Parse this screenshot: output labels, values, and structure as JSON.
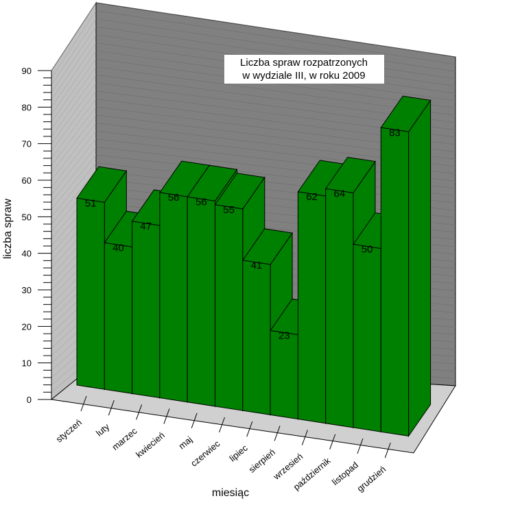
{
  "chart_data": {
    "type": "bar",
    "title_lines": [
      "Liczba spraw rozpatrzonych",
      "w  wydziale III, w roku 2009"
    ],
    "xlabel": "miesiąc",
    "ylabel": "liczba spraw",
    "ylim": [
      0,
      90
    ],
    "y_ticks": [
      0,
      10,
      20,
      30,
      40,
      50,
      60,
      70,
      80,
      90
    ],
    "categories": [
      "styczeń",
      "luty",
      "marzec",
      "kwiecień",
      "maj",
      "czerwiec",
      "lipiec",
      "sierpień",
      "wrzesień",
      "październik",
      "listopad",
      "grudzień"
    ],
    "values": [
      51,
      40,
      47,
      56,
      56,
      55,
      41,
      23,
      62,
      64,
      50,
      83
    ],
    "bar_color": "#008000",
    "back_wall_color": "#808080",
    "side_wall_color": "#c0c0c0",
    "floor_color": "#d0d0d0",
    "grid": false,
    "legend": false
  }
}
